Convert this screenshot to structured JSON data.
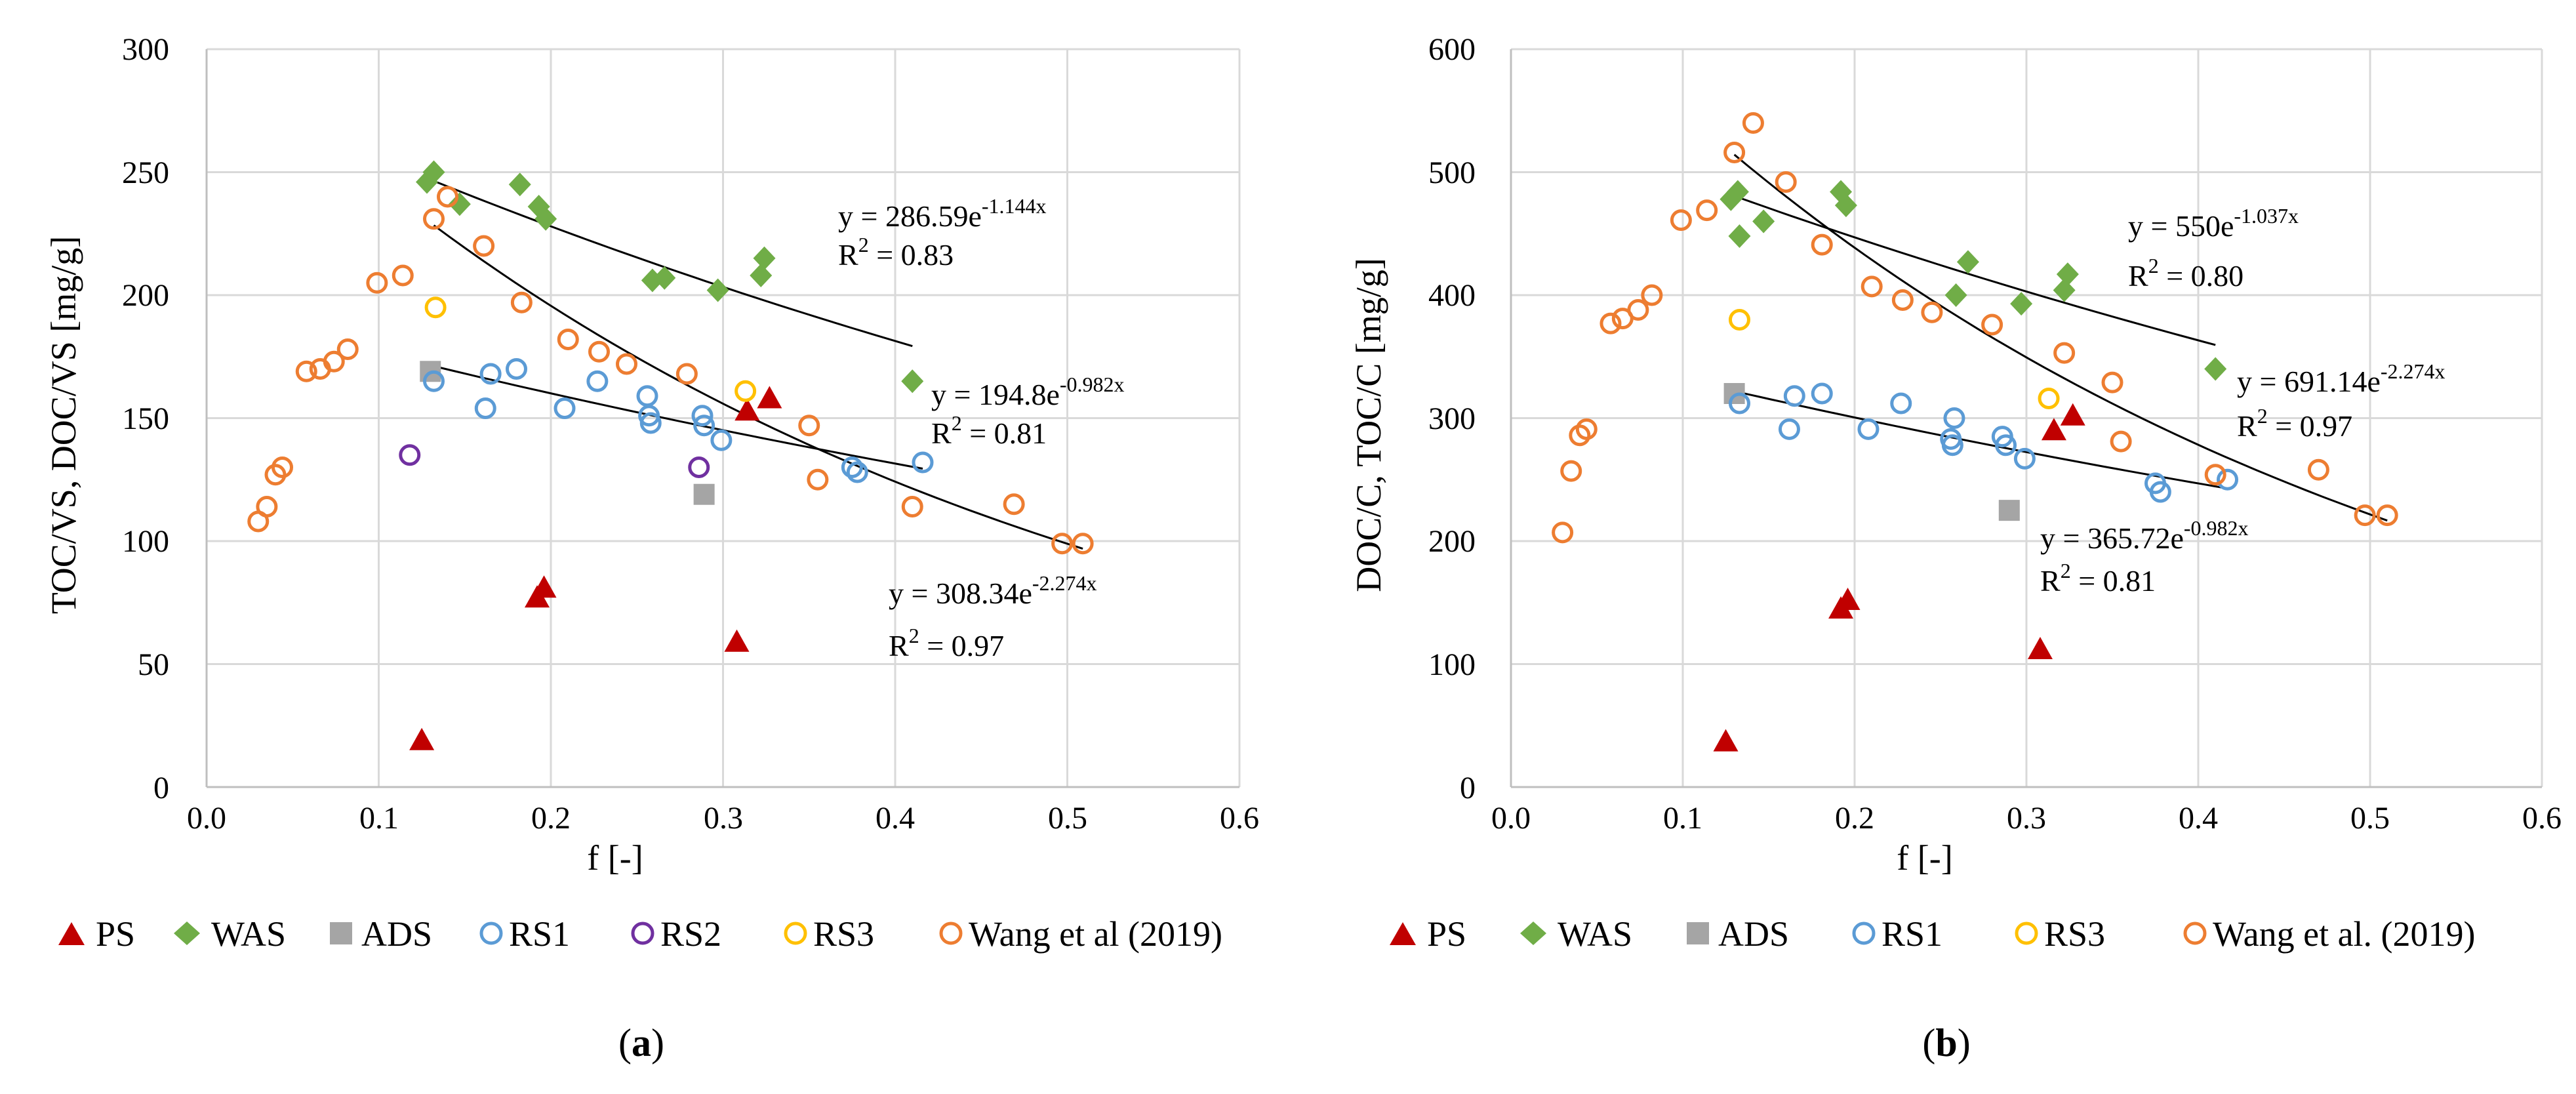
{
  "chart_data": [
    {
      "type": "scatter",
      "panel": "(a)",
      "panel_letter": "a",
      "xlabel": "f [-]",
      "ylabel": "TOC/VS, DOC/VS [mg/g]",
      "xlim": [
        0,
        0.6
      ],
      "ylim": [
        0,
        300
      ],
      "xticks": [
        "0.0",
        "0.1",
        "0.2",
        "0.3",
        "0.4",
        "0.5",
        "0.6"
      ],
      "yticks": [
        "0",
        "50",
        "100",
        "150",
        "200",
        "250",
        "300"
      ],
      "series": [
        {
          "name": "PS",
          "marker": "triangle",
          "color": "#c00000",
          "x": [
            0.125,
            0.192,
            0.196,
            0.308,
            0.314,
            0.327
          ],
          "y": [
            19,
            77,
            81,
            59,
            153,
            158
          ]
        },
        {
          "name": "WAS",
          "marker": "diamond",
          "color": "#70ad47",
          "x": [
            0.128,
            0.132,
            0.147,
            0.182,
            0.193,
            0.197,
            0.259,
            0.266,
            0.297,
            0.322,
            0.324,
            0.41
          ],
          "y": [
            246,
            250,
            237,
            245,
            236,
            231,
            206,
            207,
            202,
            208,
            215,
            165
          ]
        },
        {
          "name": "ADS",
          "marker": "square",
          "color": "#a5a5a5",
          "x": [
            0.13,
            0.289
          ],
          "y": [
            169,
            119
          ]
        },
        {
          "name": "RS1",
          "marker": "circle",
          "color": "#5b9bd5",
          "x": [
            0.132,
            0.162,
            0.165,
            0.18,
            0.208,
            0.227,
            0.256,
            0.257,
            0.258,
            0.288,
            0.289,
            0.299,
            0.375,
            0.378,
            0.416
          ],
          "y": [
            165,
            154,
            168,
            170,
            154,
            165,
            159,
            151,
            148,
            151,
            147,
            141,
            130,
            128,
            132
          ]
        },
        {
          "name": "RS2",
          "marker": "circle",
          "color": "#7030a0",
          "x": [
            0.118,
            0.286
          ],
          "y": [
            135,
            130
          ]
        },
        {
          "name": "RS3",
          "marker": "circle",
          "color": "#ffc000",
          "x": [
            0.133,
            0.313
          ],
          "y": [
            195,
            161
          ]
        },
        {
          "name": "Wang et al (2019)",
          "marker": "circle",
          "color": "#ed7d31",
          "x": [
            0.03,
            0.035,
            0.04,
            0.044,
            0.058,
            0.066,
            0.074,
            0.082,
            0.099,
            0.114,
            0.132,
            0.14,
            0.161,
            0.183,
            0.21,
            0.228,
            0.244,
            0.279,
            0.35,
            0.355,
            0.41,
            0.469,
            0.497,
            0.509
          ],
          "y": [
            108,
            114,
            127,
            130,
            169,
            170,
            173,
            178,
            205,
            208,
            231,
            240,
            220,
            197,
            182,
            177,
            172,
            168,
            147,
            125,
            114,
            115,
            99,
            99
          ]
        }
      ],
      "trendlines": [
        {
          "label": "y = 286.59e-1.144x, R2 = 0.83",
          "eq_coef": "y = 286.59e",
          "eq_exp": "-1.144x",
          "r2": "= 0.83",
          "a": 286.59,
          "b": -1.144,
          "x_range": [
            0.128,
            0.41
          ]
        },
        {
          "label": "y = 194.8e-0.982x, R2 = 0.81",
          "eq_coef": "y = 194.8e",
          "eq_exp": "-0.982x",
          "r2": "= 0.81",
          "a": 194.8,
          "b": -0.982,
          "x_range": [
            0.13,
            0.416
          ]
        },
        {
          "label": "y = 308.34e-2.274x, R2 = 0.97",
          "eq_coef": "y = 308.34e",
          "eq_exp": "-2.274x",
          "r2": "= 0.97",
          "a": 308.34,
          "b": -2.274,
          "x_range": [
            0.132,
            0.509
          ]
        }
      ]
    },
    {
      "type": "scatter",
      "panel": "(b)",
      "panel_letter": "b",
      "xlabel": "f [-]",
      "ylabel": "DOC/C, TOC/C [mg/g]",
      "xlim": [
        0,
        0.6
      ],
      "ylim": [
        0,
        600
      ],
      "xticks": [
        "0.0",
        "0.1",
        "0.2",
        "0.3",
        "0.4",
        "0.5",
        "0.6"
      ],
      "yticks": [
        "0",
        "100",
        "200",
        "300",
        "400",
        "500",
        "600"
      ],
      "series": [
        {
          "name": "PS",
          "marker": "triangle",
          "color": "#c00000",
          "x": [
            0.125,
            0.192,
            0.196,
            0.308,
            0.316,
            0.327
          ],
          "y": [
            37,
            145,
            152,
            112,
            290,
            302
          ]
        },
        {
          "name": "WAS",
          "marker": "diamond",
          "color": "#70ad47",
          "x": [
            0.128,
            0.132,
            0.133,
            0.147,
            0.192,
            0.195,
            0.259,
            0.266,
            0.297,
            0.322,
            0.324,
            0.41
          ],
          "y": [
            478,
            484,
            448,
            460,
            484,
            473,
            400,
            427,
            393,
            404,
            417,
            340
          ]
        },
        {
          "name": "ADS",
          "marker": "square",
          "color": "#a5a5a5",
          "x": [
            0.13,
            0.29
          ],
          "y": [
            320,
            225
          ]
        },
        {
          "name": "RS1",
          "marker": "circle",
          "color": "#5b9bd5",
          "x": [
            0.133,
            0.162,
            0.165,
            0.181,
            0.208,
            0.227,
            0.256,
            0.257,
            0.258,
            0.286,
            0.288,
            0.299,
            0.375,
            0.378,
            0.417
          ],
          "y": [
            312,
            291,
            318,
            320,
            291,
            312,
            283,
            278,
            300,
            285,
            278,
            267,
            247,
            240,
            250
          ]
        },
        {
          "name": "RS3",
          "marker": "circle",
          "color": "#ffc000",
          "x": [
            0.133,
            0.313
          ],
          "y": [
            380,
            316
          ]
        },
        {
          "name": "Wang et al. (2019)",
          "marker": "circle",
          "color": "#ed7d31",
          "x": [
            0.03,
            0.035,
            0.04,
            0.044,
            0.058,
            0.065,
            0.074,
            0.082,
            0.099,
            0.114,
            0.13,
            0.141,
            0.16,
            0.181,
            0.21,
            0.228,
            0.245,
            0.28,
            0.322,
            0.35,
            0.355,
            0.41,
            0.47,
            0.497,
            0.51
          ],
          "y": [
            207,
            257,
            286,
            291,
            377,
            381,
            388,
            400,
            461,
            469,
            516,
            540,
            492,
            441,
            407,
            396,
            386,
            376,
            353,
            329,
            281,
            254,
            258,
            221,
            221
          ]
        }
      ],
      "trendlines": [
        {
          "label": "y = 550e-1.037x, R2 = 0.80",
          "eq_coef": "y = 550e",
          "eq_exp": "-1.037x",
          "r2": "= 0.80",
          "a": 550,
          "b": -1.037,
          "x_range": [
            0.128,
            0.41
          ]
        },
        {
          "label": "y = 691.14e-2.274x, R2 = 0.97",
          "eq_coef": "y = 691.14e",
          "eq_exp": "-2.274x",
          "r2": "= 0.97",
          "a": 691.14,
          "b": -2.274,
          "x_range": [
            0.13,
            0.51
          ]
        },
        {
          "label": "y = 365.72e-0.982x, R2 = 0.81",
          "eq_coef": "y = 365.72e",
          "eq_exp": "-0.982x",
          "r2": "= 0.81",
          "a": 365.72,
          "b": -0.982,
          "x_range": [
            0.13,
            0.417
          ]
        }
      ]
    }
  ]
}
